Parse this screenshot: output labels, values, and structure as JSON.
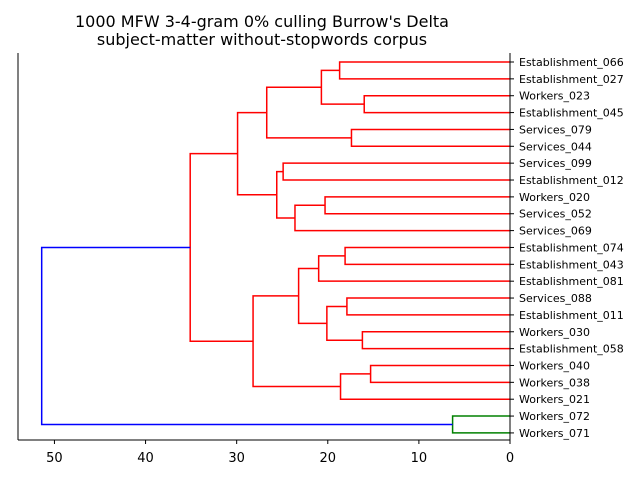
{
  "chart_data": {
    "type": "dendrogram",
    "title_line1": "1000 MFW 3-4-gram 0% culling Burrow's Delta",
    "title_line2": "subject-matter without-stopwords corpus",
    "orientation": "left",
    "xlim": [
      54,
      0
    ],
    "xticks": [
      "50",
      "40",
      "30",
      "20",
      "10",
      "0"
    ],
    "xtick_values": [
      50,
      40,
      30,
      20,
      10,
      0
    ],
    "colors": {
      "red": "#ff0000",
      "green": "#008000",
      "blue": "#0000ff"
    },
    "leaves": [
      "Establishment_066",
      "Establishment_027",
      "Workers_023",
      "Establishment_045",
      "Services_079",
      "Services_044",
      "Services_099",
      "Establishment_012",
      "Workers_020",
      "Services_052",
      "Services_069",
      "Establishment_074",
      "Establishment_043",
      "Establishment_081",
      "Services_088",
      "Establishment_011",
      "Workers_030",
      "Establishment_058",
      "Workers_040",
      "Workers_038",
      "Workers_021",
      "Workers_072",
      "Workers_071"
    ],
    "merges": [
      {
        "id": "A",
        "a": 0,
        "b": 1,
        "height": 18.7,
        "color": "red"
      },
      {
        "id": "B",
        "a": 2,
        "b": 3,
        "height": 16.0,
        "color": "red"
      },
      {
        "id": "C",
        "a": "A",
        "b": "B",
        "height": 20.7,
        "color": "red"
      },
      {
        "id": "D",
        "a": 4,
        "b": 5,
        "height": 17.4,
        "color": "red"
      },
      {
        "id": "E",
        "a": "C",
        "b": "D",
        "height": 26.7,
        "color": "red"
      },
      {
        "id": "F",
        "a": 6,
        "b": 7,
        "height": 24.9,
        "color": "red"
      },
      {
        "id": "G",
        "a": 8,
        "b": 9,
        "height": 20.3,
        "color": "red"
      },
      {
        "id": "H",
        "a": "G",
        "b": 10,
        "height": 23.6,
        "color": "red"
      },
      {
        "id": "I",
        "a": "F",
        "b": "H",
        "height": 25.6,
        "color": "red"
      },
      {
        "id": "J",
        "a": "E",
        "b": "I",
        "height": 29.9,
        "color": "red"
      },
      {
        "id": "K",
        "a": 11,
        "b": 12,
        "height": 18.1,
        "color": "red"
      },
      {
        "id": "L",
        "a": "K",
        "b": 13,
        "height": 21.0,
        "color": "red"
      },
      {
        "id": "M",
        "a": 14,
        "b": 15,
        "height": 17.9,
        "color": "red"
      },
      {
        "id": "N",
        "a": 16,
        "b": 17,
        "height": 16.2,
        "color": "red"
      },
      {
        "id": "O",
        "a": "M",
        "b": "N",
        "height": 20.1,
        "color": "red"
      },
      {
        "id": "P",
        "a": "L",
        "b": "O",
        "height": 23.2,
        "color": "red"
      },
      {
        "id": "Q",
        "a": 18,
        "b": 19,
        "height": 15.3,
        "color": "red"
      },
      {
        "id": "R",
        "a": "Q",
        "b": 20,
        "height": 18.6,
        "color": "red"
      },
      {
        "id": "S",
        "a": "P",
        "b": "R",
        "height": 28.2,
        "color": "red"
      },
      {
        "id": "T",
        "a": "J",
        "b": "S",
        "height": 35.1,
        "color": "red"
      },
      {
        "id": "U",
        "a": 21,
        "b": 22,
        "height": 6.3,
        "color": "green"
      },
      {
        "id": "V",
        "a": "T",
        "b": "U",
        "height": 51.4,
        "color": "blue"
      }
    ]
  }
}
